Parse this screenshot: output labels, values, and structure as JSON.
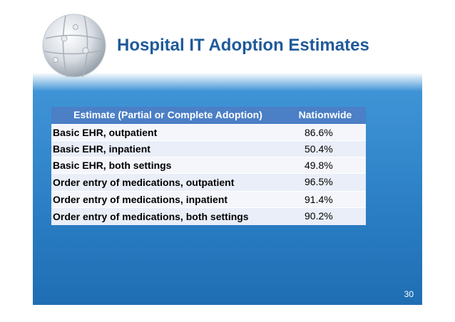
{
  "slide": {
    "title": "Hospital IT Adoption Estimates",
    "page_number": "30"
  },
  "table": {
    "headers": [
      "Estimate (Partial or Complete Adoption)",
      "Nationwide"
    ],
    "rows": [
      {
        "estimate": "Basic EHR, outpatient",
        "nationwide": "86.6%"
      },
      {
        "estimate": "Basic EHR, inpatient",
        "nationwide": "50.4%"
      },
      {
        "estimate": "Basic EHR, both settings",
        "nationwide": "49.8%"
      },
      {
        "estimate": "Order entry of medications, outpatient",
        "nationwide": "96.5%"
      },
      {
        "estimate": "Order entry of medications, inpatient",
        "nationwide": "91.4%"
      },
      {
        "estimate": "Order entry of medications, both settings",
        "nationwide": "90.2%"
      }
    ]
  },
  "colors": {
    "title": "#1f5a99",
    "header_bg": "#4b7fc6",
    "slide_bg": "#2a7dc3"
  },
  "icons": {
    "logo": "puzzle-globe-icon"
  }
}
